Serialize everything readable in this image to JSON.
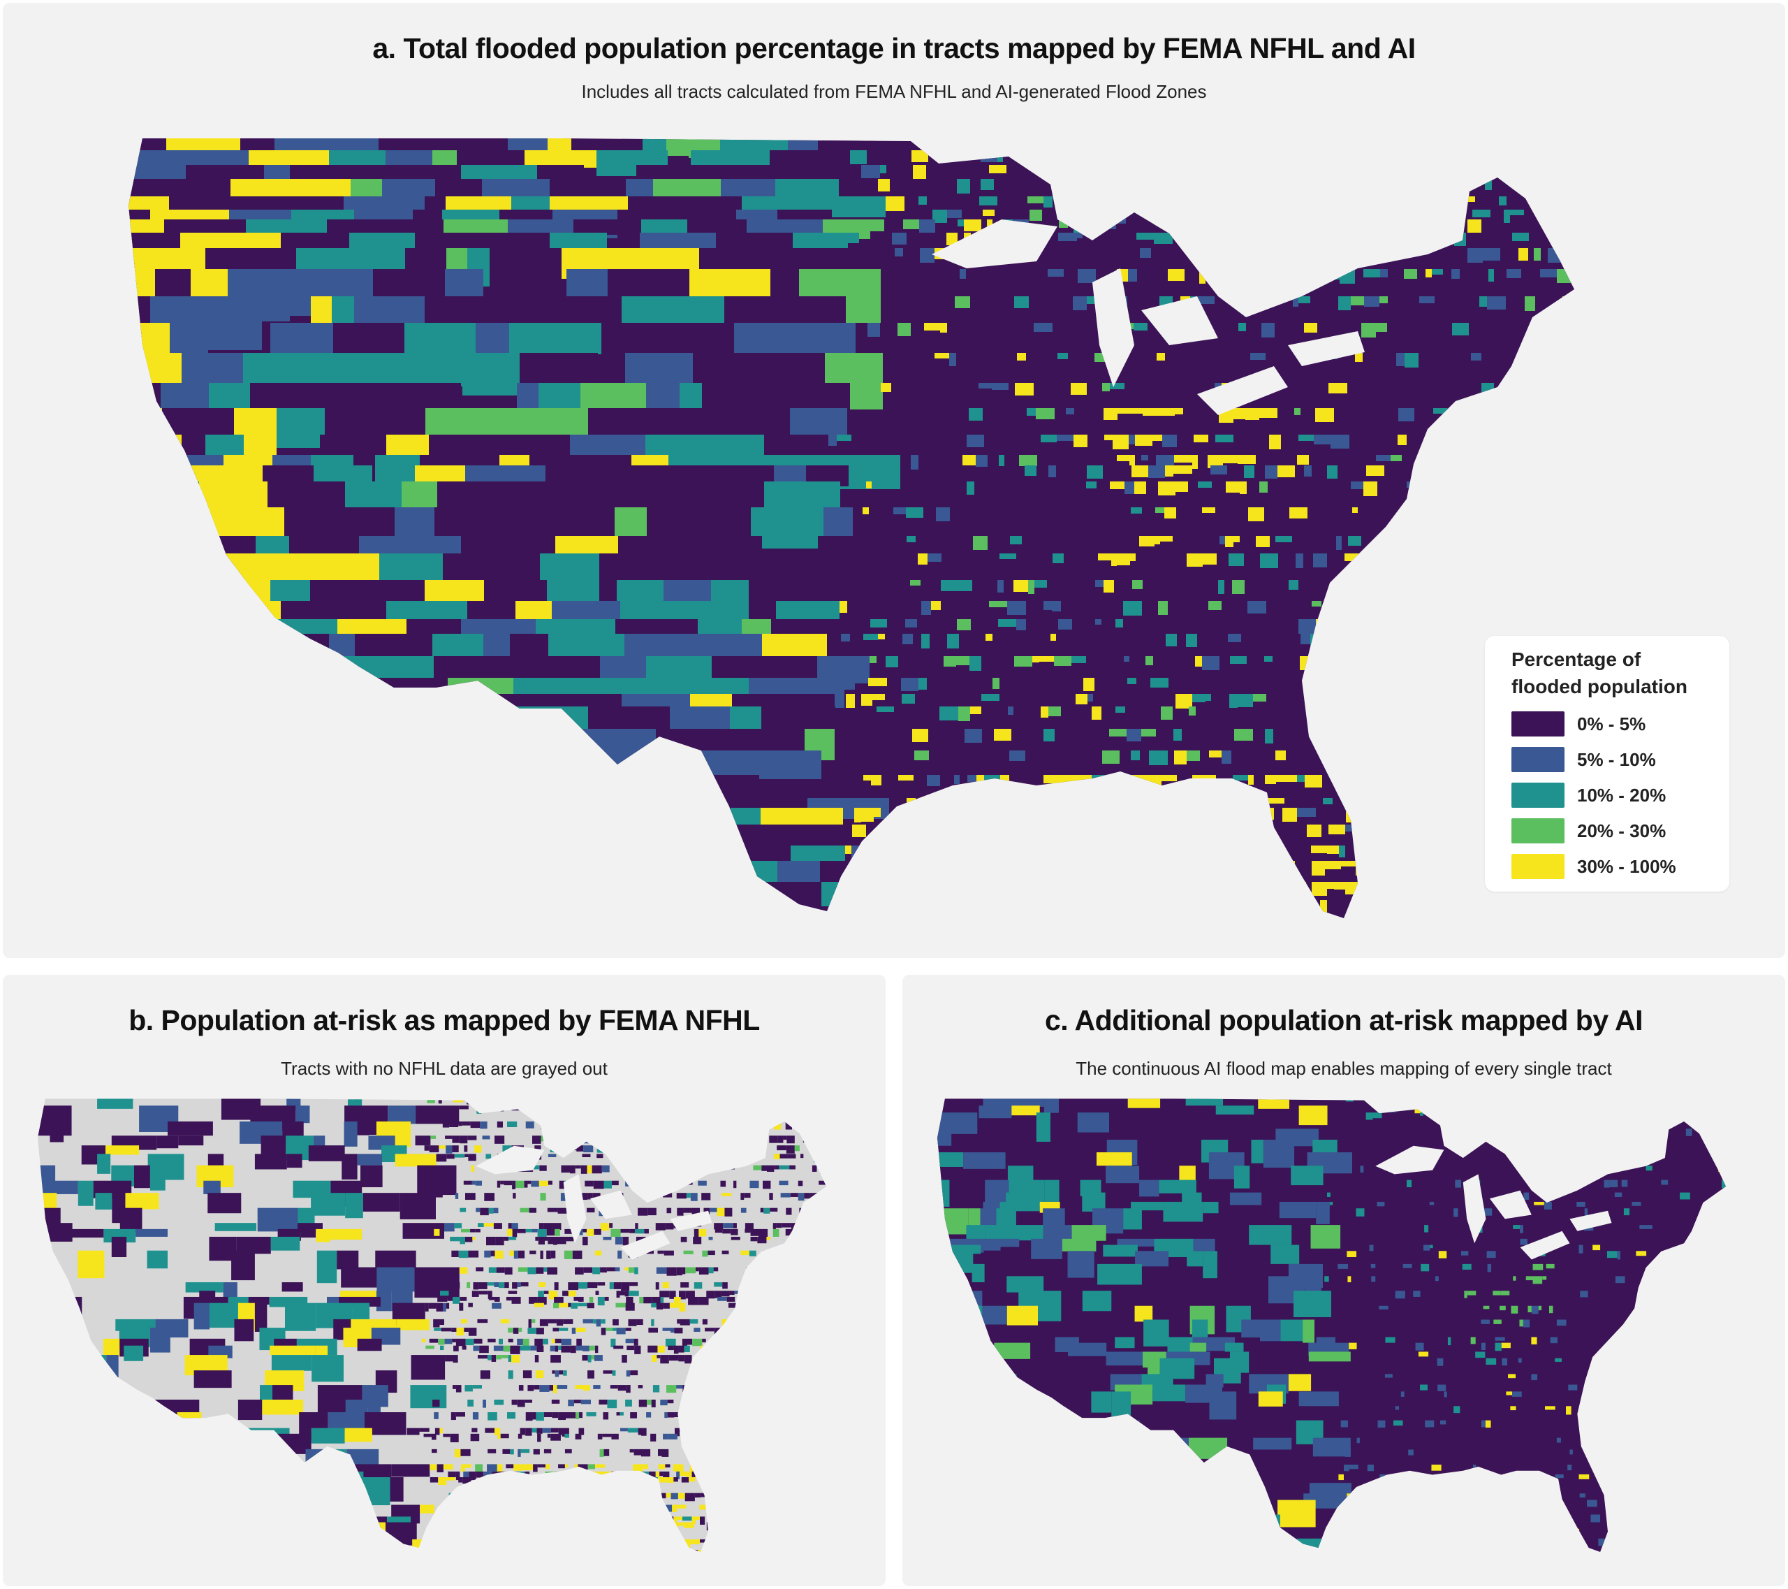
{
  "colors": {
    "c0": "#3b1356",
    "c1": "#3a5893",
    "c2": "#1f928f",
    "c3": "#5cbf5f",
    "c4": "#f6e51c",
    "nodata": "#d7d7d7",
    "background": "#f2f2f2"
  },
  "panels": {
    "a": {
      "title": "a. Total flooded population percentage in tracts mapped by FEMA NFHL and AI",
      "subtitle": "Includes all tracts calculated from FEMA NFHL and AI-generated Flood Zones"
    },
    "b": {
      "title": "b. Population at-risk as mapped by FEMA NFHL",
      "subtitle": "Tracts with no NFHL data are grayed out"
    },
    "c": {
      "title": "c. Additional population at-risk mapped by AI",
      "subtitle": "The continuous AI flood map enables mapping of every single tract"
    }
  },
  "legend": {
    "title_line1": "Percentage of",
    "title_line2": "flooded population",
    "items": [
      {
        "label": "0% - 5%",
        "color": "#3b1356"
      },
      {
        "label": "5% - 10%",
        "color": "#3a5893"
      },
      {
        "label": "10% - 20%",
        "color": "#1f928f"
      },
      {
        "label": "20% - 30%",
        "color": "#5cbf5f"
      },
      {
        "label": "30% - 100%",
        "color": "#f6e51c"
      }
    ]
  }
}
